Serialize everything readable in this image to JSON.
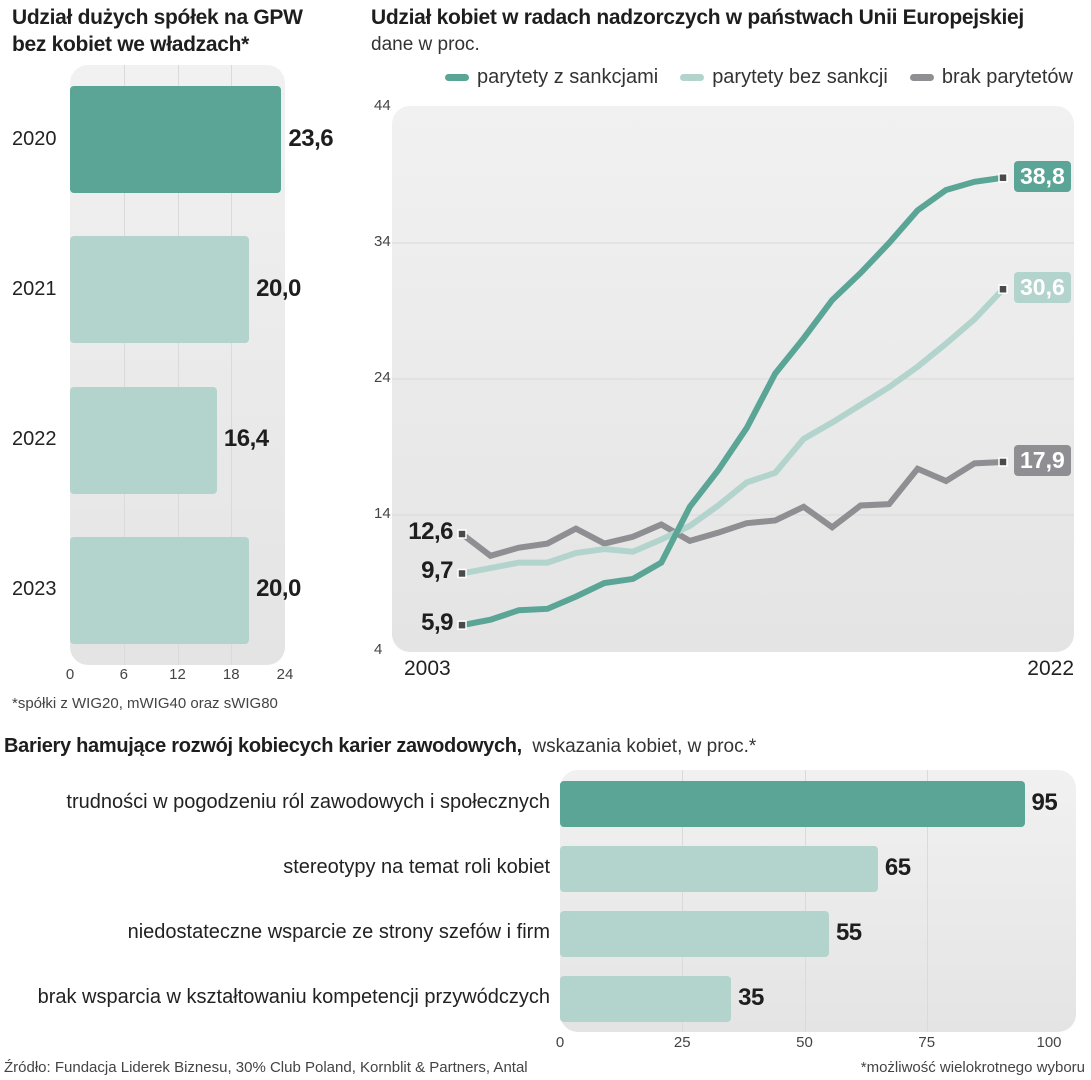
{
  "colors": {
    "dark_teal": "#5ba597",
    "light_teal": "#b2d4cd",
    "gray": "#8f8f93",
    "marker": "#4a4a4a",
    "text": "#1e1e1e"
  },
  "chart_data": [
    {
      "type": "bar",
      "orientation": "horizontal",
      "title": "Udział dużych spółek na GPW bez kobiet we władzach*",
      "categories": [
        "2020",
        "2021",
        "2022",
        "2023"
      ],
      "values": [
        23.6,
        20.0,
        16.4,
        20.0
      ],
      "value_labels": [
        "23,6",
        "20,0",
        "16,4",
        "20,0"
      ],
      "highlight_index": 0,
      "xlim": [
        0,
        24
      ],
      "xticks": [
        "0",
        "6",
        "12",
        "18",
        "24"
      ],
      "grid": true,
      "footnote": "*spółki z WIG20, mWIG40 oraz sWIG80"
    },
    {
      "type": "line",
      "title": "Udział kobiet w radach nadzorczych w państwach Unii Europejskiej",
      "subtitle": "dane w proc.",
      "legend_placement": "top-right",
      "x": [
        2003,
        2004,
        2005,
        2006,
        2007,
        2008,
        2009,
        2010,
        2011,
        2012,
        2013,
        2014,
        2015,
        2016,
        2017,
        2018,
        2019,
        2020,
        2021,
        2022
      ],
      "xtick_labels": [
        "2003",
        "2022"
      ],
      "ylim": [
        4,
        44
      ],
      "yticks": [
        "44",
        "34",
        "24",
        "14",
        "4"
      ],
      "grid": true,
      "series": [
        {
          "name": "parytety z sankcjami",
          "color_key": "dark_teal",
          "values": [
            5.9,
            6.3,
            7.0,
            7.1,
            8.0,
            9.0,
            9.3,
            10.5,
            14.6,
            17.3,
            20.4,
            24.4,
            27.0,
            29.8,
            31.8,
            34.0,
            36.4,
            37.9,
            38.5,
            38.8
          ],
          "start_label": "5,9",
          "end_label": "38,8"
        },
        {
          "name": "parytety bez sankcji",
          "color_key": "light_teal",
          "values": [
            9.7,
            10.1,
            10.5,
            10.5,
            11.2,
            11.5,
            11.3,
            12.2,
            13.2,
            14.7,
            16.4,
            17.1,
            19.6,
            20.8,
            22.1,
            23.4,
            24.9,
            26.6,
            28.4,
            30.6
          ],
          "start_label": "9,7",
          "end_label": "30,6"
        },
        {
          "name": "brak parytetów",
          "color_key": "gray",
          "values": [
            12.6,
            11.0,
            11.6,
            11.9,
            13.0,
            11.9,
            12.4,
            13.3,
            12.1,
            12.7,
            13.4,
            13.6,
            14.6,
            13.1,
            14.7,
            14.8,
            17.4,
            16.5,
            17.8,
            17.9
          ],
          "start_label": "12,6",
          "end_label": "17,9"
        }
      ]
    },
    {
      "type": "bar",
      "orientation": "horizontal",
      "title": "Bariery hamujące rozwój kobiecych karier zawodowych,",
      "subtitle": "wskazania kobiet, w proc.*",
      "categories": [
        "trudności w pogodzeniu ról zawodowych i społecznych",
        "stereotypy na temat roli kobiet",
        "niedostateczne wsparcie ze strony szefów i firm",
        "brak wsparcia w kształtowaniu kompetencji przywódczych"
      ],
      "values": [
        95,
        65,
        55,
        35
      ],
      "value_labels": [
        "95",
        "65",
        "55",
        "35"
      ],
      "highlight_index": 0,
      "xlim": [
        0,
        100
      ],
      "xticks": [
        "0",
        "25",
        "50",
        "75",
        "100"
      ],
      "grid": true,
      "footnote": "*możliwość wielokrotnego wyboru"
    }
  ],
  "source": "Źródło: Fundacja Liderek Biznesu, 30% Club Poland, Kornblit & Partners, Antal"
}
